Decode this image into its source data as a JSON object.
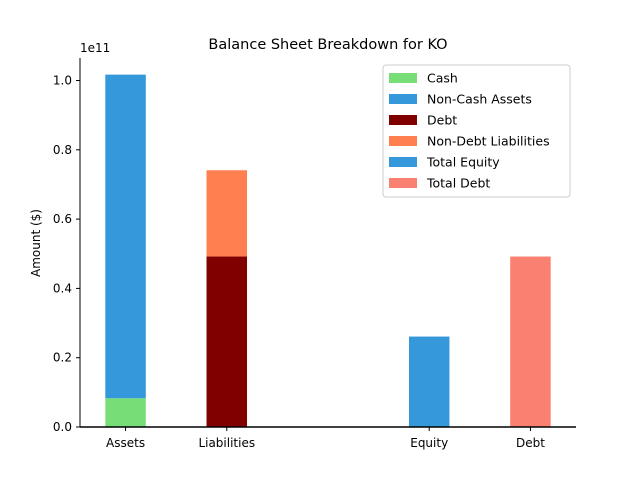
{
  "chart_data": {
    "type": "bar",
    "title": "Balance Sheet Breakdown for KO",
    "ylabel": "Amount ($)",
    "xlabel": "",
    "y_scale_label": "1e11",
    "ylim": [
      0,
      106500000000.0
    ],
    "yticks": [
      0,
      20000000000.0,
      40000000000.0,
      60000000000.0,
      80000000000.0,
      100000000000.0
    ],
    "ytick_labels": [
      "0.0",
      "0.2",
      "0.4",
      "0.6",
      "0.8",
      "1.0"
    ],
    "categories": [
      "Assets",
      "Liabilities",
      "Equity",
      "Debt"
    ],
    "x_positions": [
      0,
      1,
      3,
      4
    ],
    "xlim": [
      -0.45,
      4.45
    ],
    "grid": false,
    "legend_position": "top-right",
    "series": [
      {
        "name": "Cash",
        "color": "#77dd77",
        "category": "Assets",
        "bottom": 0,
        "value": 8300000000.0
      },
      {
        "name": "Non-Cash Assets",
        "color": "#3498db",
        "category": "Assets",
        "bottom": 8300000000.0,
        "value": 93400000000.0
      },
      {
        "name": "Debt",
        "color": "#800000",
        "category": "Liabilities",
        "bottom": 0,
        "value": 49200000000.0
      },
      {
        "name": "Non-Debt Liabilities",
        "color": "#ff7f50",
        "category": "Liabilities",
        "bottom": 49200000000.0,
        "value": 24900000000.0
      },
      {
        "name": "Total Equity",
        "color": "#3498db",
        "category": "Equity",
        "bottom": 0,
        "value": 26100000000.0
      },
      {
        "name": "Total Debt",
        "color": "#fa8072",
        "category": "Debt",
        "bottom": 0,
        "value": 49200000000.0
      }
    ]
  }
}
